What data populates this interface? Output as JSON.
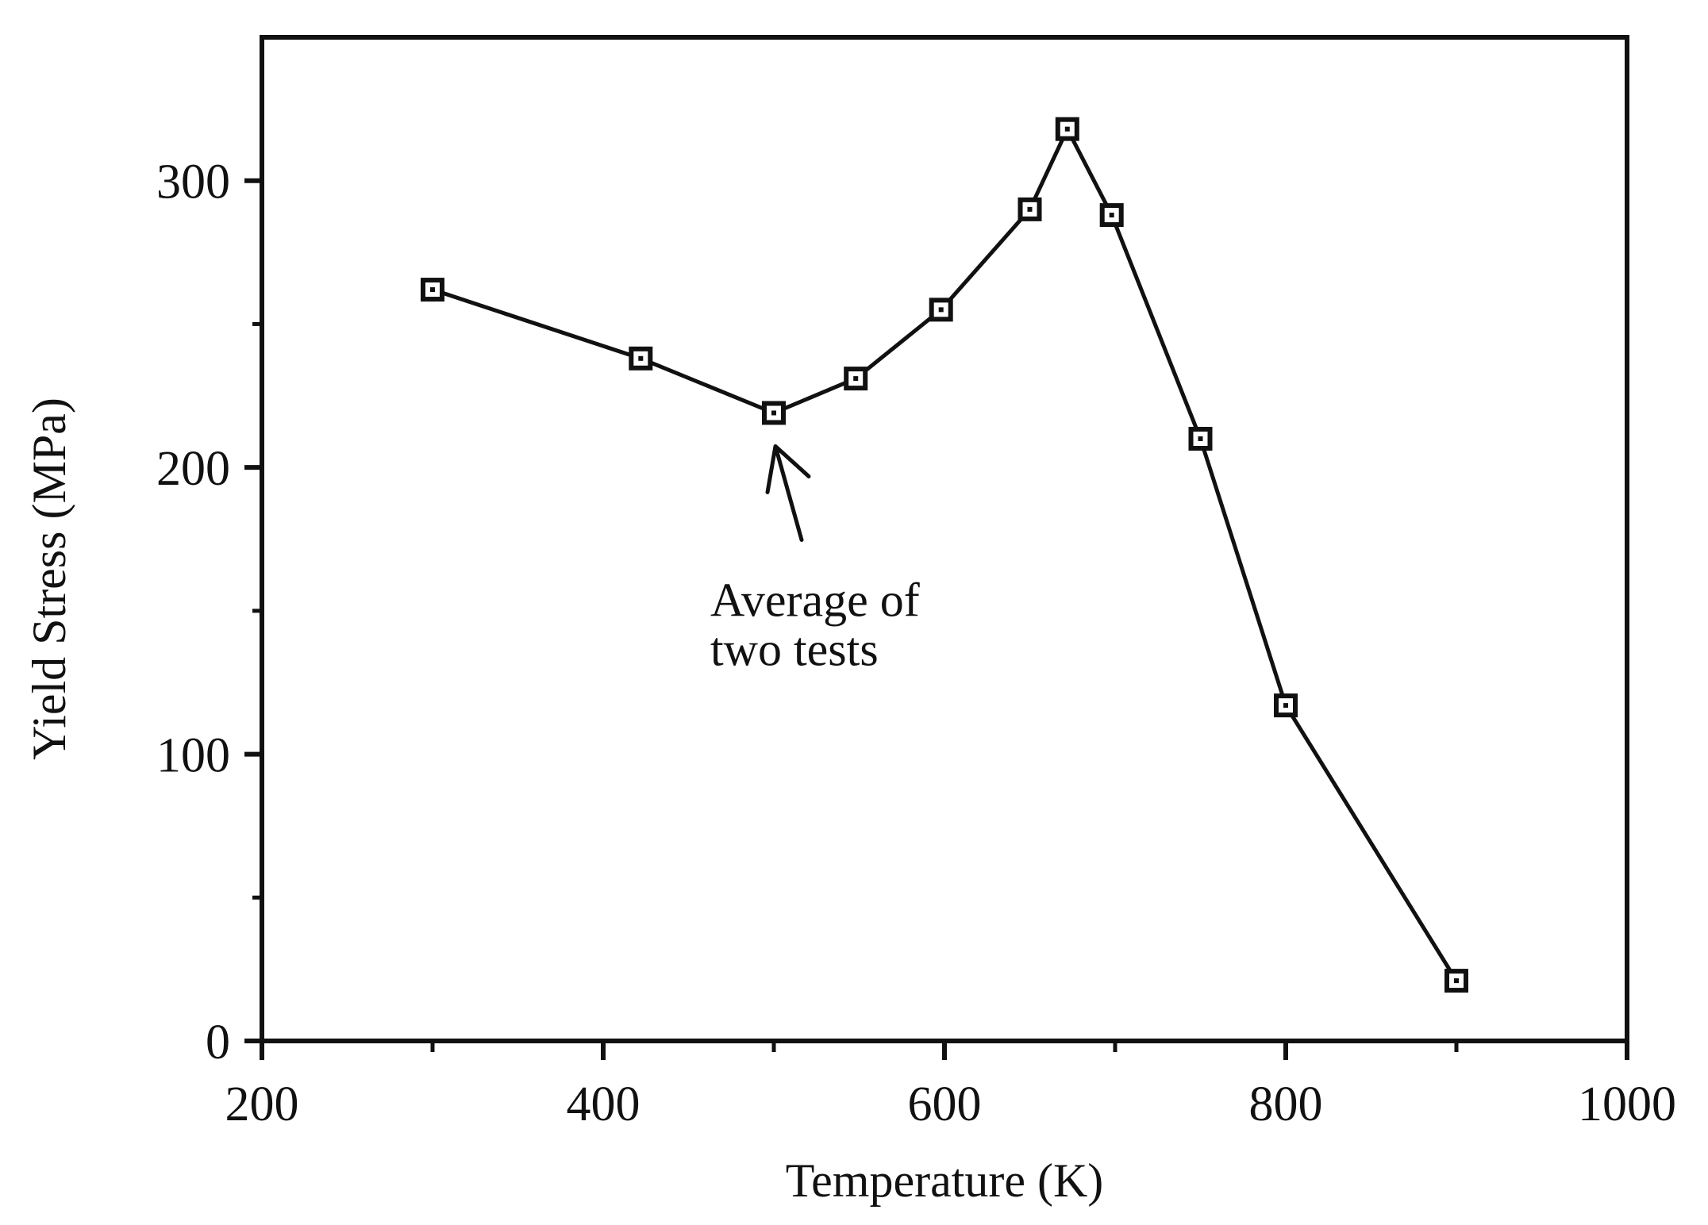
{
  "chart_data": {
    "type": "line",
    "title": "",
    "xlabel": "Temperature (K)",
    "ylabel": "Yield Stress (MPa)",
    "xlim": [
      200,
      1000
    ],
    "ylim": [
      0,
      350
    ],
    "x_ticks": [
      200,
      400,
      600,
      800,
      1000
    ],
    "x_minor_ticks": [
      300,
      500,
      700,
      900
    ],
    "y_ticks": [
      0,
      100,
      200,
      300
    ],
    "y_minor_ticks": [
      50,
      150,
      250
    ],
    "grid": false,
    "marker": "open-square",
    "color": "#111111",
    "series": [
      {
        "name": "Yield Stress",
        "x": [
          300,
          422,
          500,
          548,
          598,
          650,
          672,
          698,
          750,
          800,
          900
        ],
        "y": [
          262,
          238,
          219,
          231,
          255,
          290,
          318,
          288,
          210,
          117,
          21
        ]
      }
    ],
    "annotation": {
      "line1": "Average of",
      "line2": "two tests",
      "target_x": 500,
      "target_y": 219
    }
  }
}
